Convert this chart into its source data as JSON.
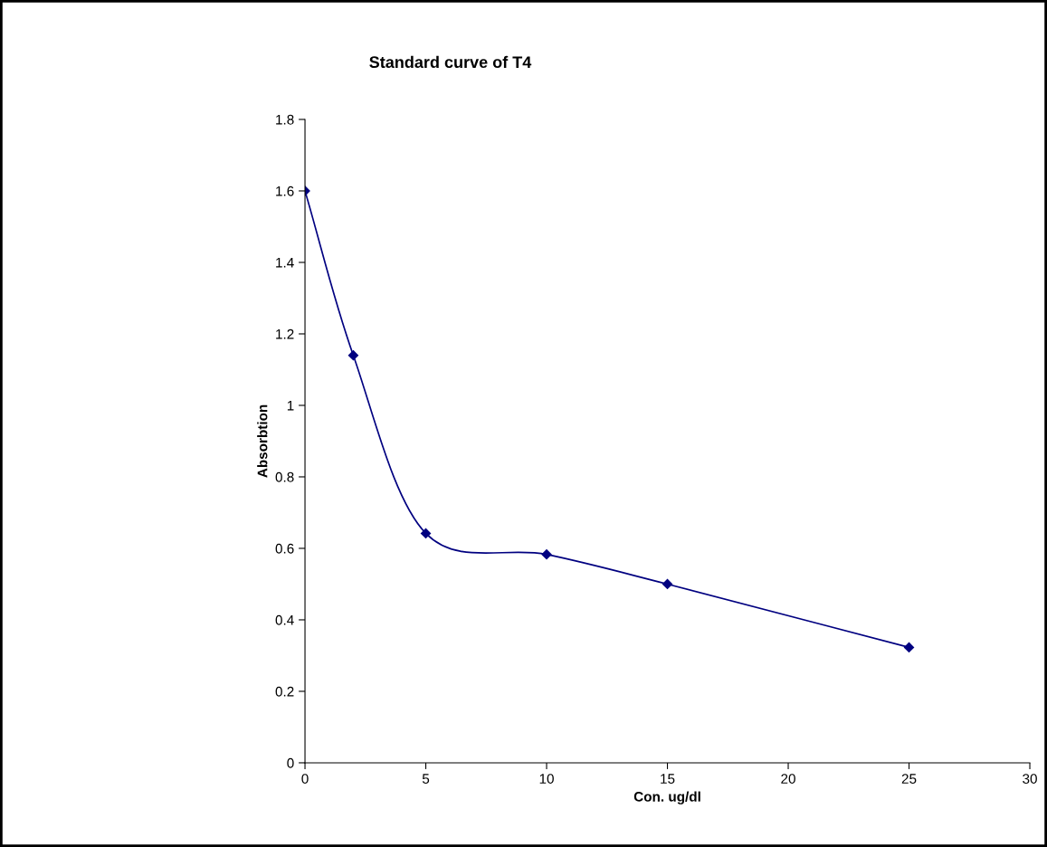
{
  "chart_data": {
    "type": "line",
    "title": "Standard curve of T4",
    "xlabel": "Con. ug/dl",
    "ylabel": "Absorbtion",
    "x": [
      0,
      2,
      5,
      10,
      15,
      25
    ],
    "series": [
      {
        "color": "#000080",
        "values": [
          1.6,
          1.14,
          0.642,
          0.583,
          0.5,
          0.323
        ]
      }
    ],
    "xlim": [
      0,
      30
    ],
    "xticks": [
      0,
      5,
      10,
      15,
      20,
      25,
      30
    ],
    "ylim": [
      0,
      1.8
    ],
    "yticks": [
      0,
      0.2,
      0.4,
      0.6,
      0.8,
      1,
      1.2,
      1.4,
      1.6,
      1.8
    ],
    "marker": "diamond",
    "line_style": "solid",
    "grid": false,
    "legend": false
  }
}
